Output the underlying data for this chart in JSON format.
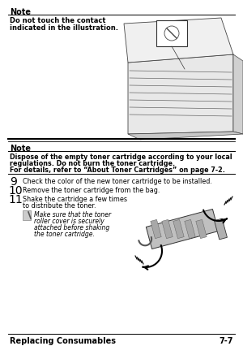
{
  "bg_color": "#ffffff",
  "note1_title": "Note",
  "note1_text_line1": "Do not touch the contact",
  "note1_text_line2": "indicated in the illustration.",
  "note2_title": "Note",
  "note2_line1": "Dispose of the empty toner cartridge according to your local",
  "note2_line2": "regulations. Do not burn the toner cartridge.",
  "note2_line3": "For details, refer to “About Toner Cartridges” on page 7-2.",
  "step9_num": "9",
  "step9_text": "Check the color of the new toner cartridge to be installed.",
  "step10_num": "10",
  "step10_text": "Remove the toner cartridge from the bag.",
  "step11_num": "11",
  "step11_text1": "Shake the cartridge a few times",
  "step11_text2": "to distribute the toner.",
  "sub_note_line1": "Make sure that the toner",
  "sub_note_line2": "roller cover is securely",
  "sub_note_line3": "attached before shaking",
  "sub_note_line4": "the toner cartridge.",
  "footer_left": "Replacing Consumables",
  "footer_right": "7-7"
}
